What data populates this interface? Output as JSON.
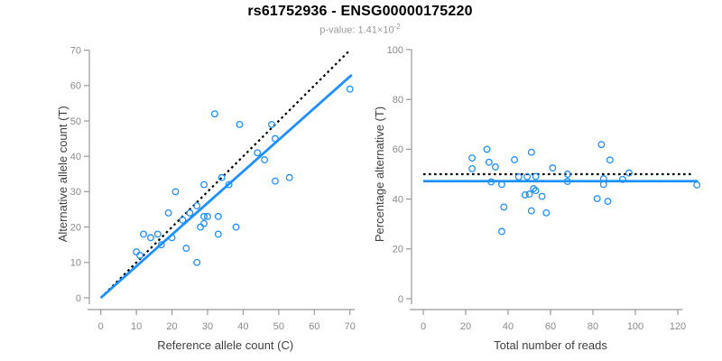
{
  "figure": {
    "title": "rs61752936 - ENSG00000175220",
    "subtitle_prefix": "p-value: 1.41×10",
    "subtitle_exponent": "-2"
  },
  "colors": {
    "background": "#ffffff",
    "accent_blue": "#1e90ff",
    "dotted_black": "#000000",
    "axis_line": "#999999",
    "tick_label": "#8a8a8a",
    "axis_title": "#404040",
    "title": "#000000",
    "subtitle": "#999999"
  },
  "chart_data": [
    {
      "type": "scatter",
      "name": "allele-counts-scatter",
      "xlabel": "Reference allele count (C)",
      "ylabel": "Alternative allele count (T)",
      "xlim": [
        0,
        70
      ],
      "ylim": [
        0,
        70
      ],
      "xticks": [
        0,
        10,
        20,
        30,
        40,
        50,
        60,
        70
      ],
      "yticks": [
        0,
        10,
        20,
        30,
        40,
        50,
        60,
        70
      ],
      "grid": false,
      "legend": "none",
      "points": [
        [
          10,
          13
        ],
        [
          11,
          12
        ],
        [
          12,
          18
        ],
        [
          14,
          17
        ],
        [
          16,
          18
        ],
        [
          17,
          15
        ],
        [
          19,
          24
        ],
        [
          20,
          17
        ],
        [
          21,
          30
        ],
        [
          23,
          22
        ],
        [
          24,
          14
        ],
        [
          25,
          24
        ],
        [
          27,
          26
        ],
        [
          27,
          10
        ],
        [
          28,
          20
        ],
        [
          29,
          21
        ],
        [
          29,
          23
        ],
        [
          29,
          32
        ],
        [
          30,
          23
        ],
        [
          32,
          52
        ],
        [
          33,
          23
        ],
        [
          33,
          18
        ],
        [
          34,
          34
        ],
        [
          36,
          32
        ],
        [
          38,
          20
        ],
        [
          39,
          49
        ],
        [
          44,
          41
        ],
        [
          46,
          39
        ],
        [
          48,
          49
        ],
        [
          49,
          45
        ],
        [
          49,
          33
        ],
        [
          53,
          34
        ],
        [
          70,
          59
        ]
      ],
      "lines": [
        {
          "name": "identity-line",
          "style": "dotted",
          "color": "#000000",
          "from": [
            0,
            0
          ],
          "to": [
            70,
            70
          ]
        },
        {
          "name": "fit-line",
          "style": "solid",
          "color": "#1e90ff",
          "from": [
            0,
            0
          ],
          "to": [
            70.5,
            63
          ]
        }
      ]
    },
    {
      "type": "scatter",
      "name": "percentage-vs-coverage-scatter",
      "xlabel": "Total number of reads",
      "ylabel": "Percentage alternative (T)",
      "xlim": [
        0,
        130
      ],
      "ylim": [
        0,
        100
      ],
      "xticks": [
        0,
        20,
        40,
        60,
        80,
        100,
        120
      ],
      "yticks": [
        0,
        20,
        40,
        60,
        80,
        100
      ],
      "grid": false,
      "legend": "none",
      "points": [
        [
          23,
          56.5
        ],
        [
          23,
          52.2
        ],
        [
          30,
          60
        ],
        [
          31,
          54.8
        ],
        [
          34,
          52.9
        ],
        [
          32,
          46.9
        ],
        [
          43,
          55.8
        ],
        [
          37,
          45.9
        ],
        [
          51,
          58.8
        ],
        [
          45,
          48.9
        ],
        [
          38,
          36.8
        ],
        [
          49,
          49
        ],
        [
          53,
          49.1
        ],
        [
          37,
          27
        ],
        [
          48,
          41.7
        ],
        [
          50,
          42
        ],
        [
          52,
          44.2
        ],
        [
          61,
          52.5
        ],
        [
          53,
          43.4
        ],
        [
          84,
          61.9
        ],
        [
          56,
          41.1
        ],
        [
          51,
          35.3
        ],
        [
          68,
          50
        ],
        [
          68,
          47.1
        ],
        [
          58,
          34.5
        ],
        [
          88,
          55.7
        ],
        [
          85,
          48.2
        ],
        [
          85,
          45.9
        ],
        [
          97,
          50.5
        ],
        [
          94,
          47.9
        ],
        [
          82,
          40.2
        ],
        [
          87,
          39.1
        ],
        [
          129,
          45.7
        ]
      ],
      "lines": [
        {
          "name": "expected-50pct-line",
          "style": "dotted",
          "color": "#000000",
          "from": [
            0,
            50
          ],
          "to": [
            126.5,
            50
          ]
        },
        {
          "name": "mean-pct-line",
          "style": "solid",
          "color": "#1e90ff",
          "from": [
            0,
            47.2
          ],
          "to": [
            129.5,
            47.2
          ]
        }
      ]
    }
  ]
}
